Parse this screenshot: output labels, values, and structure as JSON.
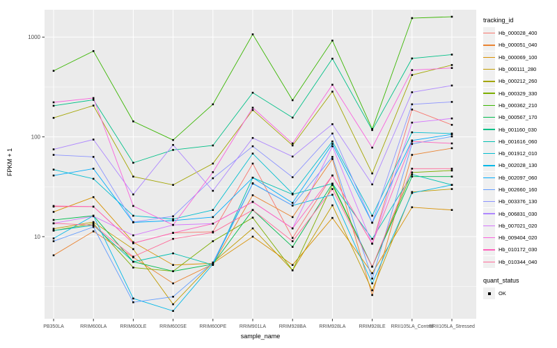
{
  "chart_data": {
    "type": "line",
    "title": "",
    "xlabel": "sample_name",
    "ylabel": "FPKM + 1",
    "yscale": "log10",
    "ylim": [
      1.5,
      1900
    ],
    "y_ticks": [
      10,
      100,
      1000
    ],
    "y_tick_labels": [
      "10",
      "100",
      "1000"
    ],
    "y_minor_ticks": [
      3.162,
      31.62,
      316.2
    ],
    "grid": "on",
    "panel_background": "#EBEBEB",
    "grid_color": "#FFFFFF",
    "point_color": "#000000",
    "legend_position": "right",
    "legend_title": "tracking_id",
    "quant_legend_title": "quant_status",
    "quant_legend_items": [
      "OK"
    ],
    "categories": [
      "PB350LA",
      "RRIM600LA",
      "RRIM600LE",
      "RRIM600SE",
      "RRIM600PE",
      "RRIM901LA",
      "RRIM928BA",
      "RRIM928LA",
      "RRIM928LE",
      "RRII105LA_Control",
      "RRII105LA_Stressed"
    ],
    "series": [
      {
        "name": "Hb_000028_400",
        "color": "#F8766D",
        "values": [
          20,
          20,
          8.6,
          10.9,
          11.2,
          54,
          9.7,
          41,
          8.5,
          188,
          132
        ]
      },
      {
        "name": "Hb_000051_040",
        "color": "#EA8331",
        "values": [
          6.5,
          11.3,
          6.2,
          3.4,
          5.3,
          26,
          15.7,
          60,
          2.6,
          66,
          77
        ]
      },
      {
        "name": "Hb_000069_100",
        "color": "#D89000",
        "values": [
          17.7,
          24.9,
          8.8,
          5.2,
          5.4,
          10,
          5.2,
          15.4,
          4.3,
          19.7,
          18.5
        ]
      },
      {
        "name": "Hb_000111_280",
        "color": "#C09B00",
        "values": [
          12,
          14,
          7.5,
          2.1,
          5.5,
          12.1,
          4.6,
          20.6,
          2.9,
          28,
          30
        ]
      },
      {
        "name": "Hb_000212_260",
        "color": "#A3A500",
        "values": [
          155,
          206,
          40,
          33,
          54,
          186,
          82,
          284,
          43,
          417,
          525
        ]
      },
      {
        "name": "Hb_000329_330",
        "color": "#7CAE00",
        "values": [
          11.5,
          13.5,
          4.9,
          4.5,
          9,
          15.5,
          4.6,
          33,
          5,
          44,
          46
        ]
      },
      {
        "name": "Hb_000362_210",
        "color": "#39B600",
        "values": [
          459,
          724,
          143,
          93,
          212,
          1066,
          233,
          923,
          120,
          1550,
          1600
        ]
      },
      {
        "name": "Hb_000567_170",
        "color": "#00BB4E",
        "values": [
          14.7,
          16.2,
          5.6,
          4.5,
          5.3,
          18.5,
          7.9,
          34,
          5,
          40,
          40
        ]
      },
      {
        "name": "Hb_001160_030",
        "color": "#00C087",
        "values": [
          205,
          235,
          55,
          74,
          82,
          277,
          156,
          608,
          117,
          611,
          668
        ]
      },
      {
        "name": "Hb_001616_060",
        "color": "#00C0B2",
        "values": [
          11.5,
          13,
          5.6,
          6.8,
          5.2,
          39,
          26.5,
          34,
          9.5,
          42,
          33
        ]
      },
      {
        "name": "Hb_001912_010",
        "color": "#00BED0",
        "values": [
          47,
          38,
          16.2,
          15,
          18.5,
          68,
          27,
          90,
          16.2,
          111,
          108
        ]
      },
      {
        "name": "Hb_002028_130",
        "color": "#00B8E7",
        "values": [
          9.6,
          16.2,
          2.4,
          1.8,
          5.3,
          34,
          20.5,
          26.3,
          3.4,
          27.4,
          33
        ]
      },
      {
        "name": "Hb_002097_060",
        "color": "#00ACFC",
        "values": [
          41,
          48,
          13.9,
          14.5,
          15.7,
          39,
          21.8,
          85,
          13.8,
          92,
          106
        ]
      },
      {
        "name": "Hb_002660_160",
        "color": "#619CFF",
        "values": [
          9,
          12.5,
          2.2,
          2.5,
          5.5,
          34.3,
          20.5,
          63,
          3.8,
          85,
          101
        ]
      },
      {
        "name": "Hb_003376_130",
        "color": "#8B93FF",
        "values": [
          66,
          63,
          14,
          16,
          38.5,
          80.5,
          39.4,
          108,
          13.8,
          212,
          224
        ]
      },
      {
        "name": "Hb_006831_030",
        "color": "#AE87FF",
        "values": [
          75,
          94,
          26.5,
          83,
          28.8,
          97.5,
          63.5,
          134,
          33.4,
          280,
          327
        ]
      },
      {
        "name": "Hb_007021_020",
        "color": "#D575FE",
        "values": [
          13.6,
          16,
          10.3,
          13.1,
          13.5,
          22.3,
          12.1,
          80.5,
          8.5,
          139,
          153
        ]
      },
      {
        "name": "Hb_009404_020",
        "color": "#F962DD",
        "values": [
          222,
          245,
          20.3,
          13.1,
          44.3,
          196,
          86,
          333,
          78,
          467,
          490
        ]
      },
      {
        "name": "Hb_010172_030",
        "color": "#FF62BC",
        "values": [
          20.3,
          20,
          8.6,
          10.9,
          13.5,
          22.3,
          12.1,
          41,
          8.5,
          90,
          86
        ]
      },
      {
        "name": "Hb_010344_040",
        "color": "#FF6A98",
        "values": [
          13.6,
          13,
          6.3,
          9.5,
          11,
          18.5,
          9,
          30,
          5,
          48,
          48
        ]
      }
    ]
  }
}
